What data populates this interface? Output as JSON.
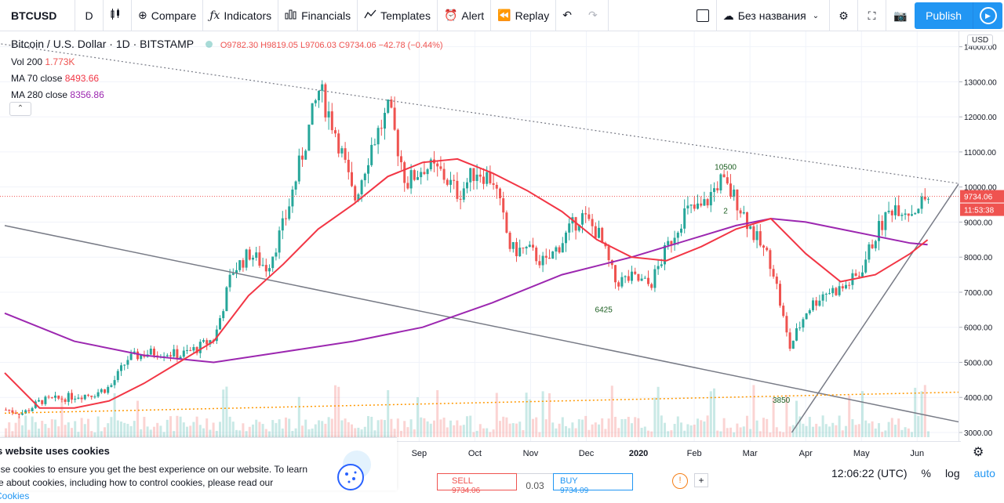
{
  "toolbar": {
    "symbol": "BTCUSD",
    "interval": "D",
    "compare": "Compare",
    "indicators": "Indicators",
    "financials": "Financials",
    "templates": "Templates",
    "alert": "Alert",
    "replay": "Replay",
    "layout_name": "Без названия",
    "publish": "Publish"
  },
  "legend": {
    "title": "Bitcoin / U.S. Dollar · 1D · BITSTAMP",
    "ohlc": "O9782.30 H9819.05 L9706.03 C9734.06 −42.78 (−0.44%)",
    "vol_label": "Vol 200",
    "vol_value": "1.773K",
    "ma70_label": "MA 70 close",
    "ma70_value": "8493.66",
    "ma280_label": "MA 280 close",
    "ma280_value": "8356.86"
  },
  "price_axis": {
    "currency": "USD",
    "last_price": "9734.06",
    "countdown": "11:53:38"
  },
  "time_axis": {
    "clock": "12:06:22 (UTC)",
    "pct": "%",
    "log": "log",
    "auto": "auto"
  },
  "cookie": {
    "title": "s website uses cookies",
    "text": "use cookies to ensure you get the best experience on our website. To learn re about cookies, including how to control cookies, please read our ",
    "link": "Cookies"
  },
  "trade": {
    "sell": "SELL",
    "sell_price": "9734.06",
    "spread": "0.03",
    "buy": "BUY",
    "buy_price": "9734.09"
  },
  "colors": {
    "up": "#26a69a",
    "down": "#ef5350",
    "ma70": "#f23645",
    "ma280": "#9c27b0",
    "trend": "#787b86",
    "accent": "#2196f3"
  },
  "chart_data": {
    "type": "candlestick",
    "symbol": "BTCUSD",
    "y_ticks": [
      3000,
      4000,
      5000,
      6000,
      7000,
      8000,
      9000,
      10000,
      11000,
      12000,
      13000,
      14000
    ],
    "x_ticks": [
      "Sep",
      "Oct",
      "Nov",
      "Dec",
      "2020",
      "Feb",
      "Mar",
      "Apr",
      "May",
      "Jun"
    ],
    "annotations": [
      {
        "text": "10500",
        "price": 10500,
        "date_index": 20.7
      },
      {
        "text": "6425",
        "price": 6425,
        "date_index": 17.2
      },
      {
        "text": "3850",
        "price": 3850,
        "date_index": 22.3
      },
      {
        "text": "2",
        "price": 9250,
        "date_index": 20.7
      }
    ],
    "price_path": [
      [
        0,
        3650
      ],
      [
        0.5,
        3550
      ],
      [
        1,
        3900
      ],
      [
        1.5,
        3950
      ],
      [
        2,
        4050
      ],
      [
        2.5,
        4100
      ],
      [
        3,
        4300
      ],
      [
        3.5,
        5100
      ],
      [
        4,
        5250
      ],
      [
        4.5,
        5300
      ],
      [
        5,
        5200
      ],
      [
        5.5,
        5400
      ],
      [
        6,
        5700
      ],
      [
        6.5,
        7600
      ],
      [
        7,
        8100
      ],
      [
        7.5,
        7700
      ],
      [
        8,
        9000
      ],
      [
        8.5,
        10900
      ],
      [
        9,
        12800
      ],
      [
        9.5,
        11500
      ],
      [
        10,
        9600
      ],
      [
        10.5,
        11200
      ],
      [
        11,
        12200
      ],
      [
        11.5,
        10100
      ],
      [
        12,
        10600
      ],
      [
        12.5,
        10400
      ],
      [
        13,
        9800
      ],
      [
        13.5,
        10500
      ],
      [
        14,
        10200
      ],
      [
        14.5,
        8200
      ],
      [
        15,
        8200
      ],
      [
        15.5,
        7800
      ],
      [
        16,
        8500
      ],
      [
        16.5,
        9200
      ],
      [
        17,
        8700
      ],
      [
        17.5,
        7300
      ],
      [
        18,
        7400
      ],
      [
        18.5,
        7200
      ],
      [
        19,
        8300
      ],
      [
        19.5,
        9300
      ],
      [
        20,
        9400
      ],
      [
        20.5,
        10200
      ],
      [
        21,
        9600
      ],
      [
        21.5,
        8600
      ],
      [
        22,
        7800
      ],
      [
        22.5,
        5400
      ],
      [
        23,
        6500
      ],
      [
        23.5,
        7000
      ],
      [
        24,
        7100
      ],
      [
        24.5,
        7500
      ],
      [
        25,
        8700
      ],
      [
        25.5,
        9500
      ],
      [
        26,
        9300
      ],
      [
        26.5,
        9734
      ]
    ],
    "ma70": [
      [
        0,
        4700
      ],
      [
        1,
        3700
      ],
      [
        2,
        3700
      ],
      [
        3,
        3900
      ],
      [
        4,
        4400
      ],
      [
        5,
        5000
      ],
      [
        6,
        5600
      ],
      [
        7,
        6900
      ],
      [
        8,
        7800
      ],
      [
        9,
        8800
      ],
      [
        10,
        9500
      ],
      [
        11,
        10300
      ],
      [
        12,
        10700
      ],
      [
        13,
        10800
      ],
      [
        14,
        10400
      ],
      [
        15,
        9900
      ],
      [
        16,
        9300
      ],
      [
        17,
        8500
      ],
      [
        18,
        8000
      ],
      [
        19,
        7900
      ],
      [
        20,
        8300
      ],
      [
        21,
        8800
      ],
      [
        22,
        9100
      ],
      [
        23,
        8100
      ],
      [
        24,
        7300
      ],
      [
        25,
        7500
      ],
      [
        26,
        8100
      ],
      [
        26.5,
        8493
      ]
    ],
    "ma280": [
      [
        0,
        6400
      ],
      [
        2,
        5600
      ],
      [
        4,
        5200
      ],
      [
        6,
        5000
      ],
      [
        8,
        5300
      ],
      [
        10,
        5600
      ],
      [
        12,
        6000
      ],
      [
        14,
        6700
      ],
      [
        16,
        7500
      ],
      [
        18,
        8000
      ],
      [
        20,
        8600
      ],
      [
        21,
        8900
      ],
      [
        22,
        9100
      ],
      [
        23,
        9000
      ],
      [
        24,
        8800
      ],
      [
        25,
        8600
      ],
      [
        26,
        8400
      ],
      [
        26.5,
        8356
      ]
    ],
    "trendlines": [
      {
        "name": "resistance-dotted",
        "p1": [
          -3,
          14500
        ],
        "p2": [
          27.4,
          10100
        ],
        "style": "dotted"
      },
      {
        "name": "support",
        "p1": [
          22.6,
          3000
        ],
        "p2": [
          27.4,
          10100
        ],
        "style": "solid"
      },
      {
        "name": "long-descending",
        "p1": [
          0,
          8900
        ],
        "p2": [
          27.4,
          3300
        ],
        "style": "solid"
      },
      {
        "name": "ascending-orange",
        "p1": [
          0,
          3550
        ],
        "p2": [
          27.4,
          4150
        ],
        "style": "dotted-orange"
      }
    ]
  }
}
